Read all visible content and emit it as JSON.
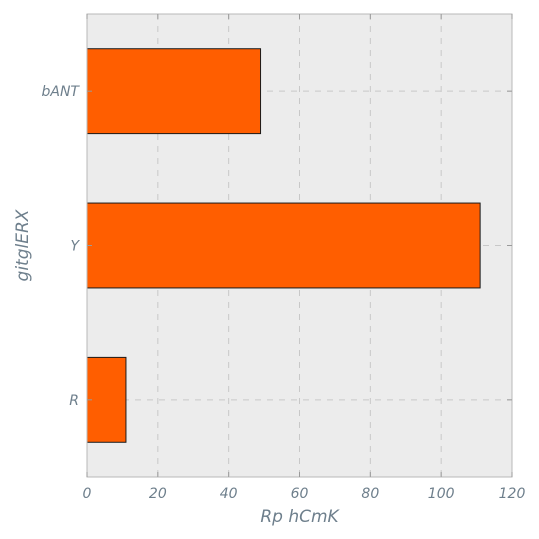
{
  "chart_data": {
    "type": "bar",
    "orientation": "horizontal",
    "categories": [
      "R",
      "Y",
      "bANT"
    ],
    "values": [
      11,
      111,
      49
    ],
    "title": "",
    "xlabel": "Rp hCmK",
    "ylabel": "gitglERX",
    "xlim": [
      0,
      120
    ],
    "xticks": [
      0,
      20,
      40,
      60,
      80,
      100,
      120
    ],
    "grid": true,
    "bar_color": "#ff5e00",
    "plot_background": "#ececec"
  }
}
